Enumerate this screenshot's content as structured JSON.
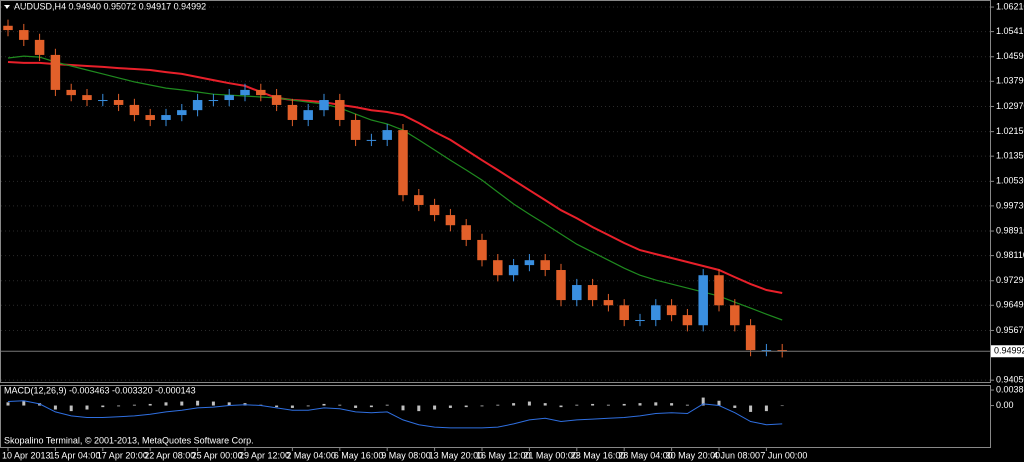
{
  "chart_data": [
    {
      "type": "candlestick",
      "title": "AUDUSD,H4  0.94940 0.95072 0.94917 0.94992",
      "footer": "Skopalino Terminal, © 2001-2013, MetaQuotes Software Corp.",
      "categories": [
        "10 Apr 2013",
        null,
        null,
        "15 Apr 04:00",
        null,
        null,
        "17 Apr 20:00",
        null,
        null,
        "22 Apr 08:00",
        null,
        null,
        "25 Apr 00:00",
        null,
        null,
        "29 Apr 12:00",
        null,
        null,
        "2 May 04:00",
        null,
        null,
        "6 May 16:00",
        null,
        null,
        "9 May 08:00",
        null,
        null,
        "13 May 20:00",
        null,
        null,
        "16 May 12:00",
        null,
        null,
        "21 May 00:00",
        null,
        null,
        "23 May 16:00",
        null,
        null,
        "28 May 04:00",
        null,
        null,
        "30 May 20:00",
        null,
        null,
        "4 Jun 08:00",
        null,
        null,
        "7 Jun 00:00",
        null
      ],
      "open": [
        1.056,
        1.0546,
        1.0514,
        1.0465,
        1.0351,
        1.0334,
        1.0318,
        1.0318,
        1.0302,
        1.0269,
        1.0253,
        1.0269,
        1.0285,
        1.0318,
        1.0318,
        1.0334,
        1.0351,
        1.0334,
        1.0302,
        1.0253,
        1.0285,
        1.0318,
        1.0253,
        1.0188,
        1.0188,
        1.022,
        1.0008,
        0.9976,
        0.9943,
        0.991,
        0.9862,
        0.9796,
        0.9747,
        0.978,
        0.9796,
        0.9764,
        0.9666,
        0.9715,
        0.9666,
        0.9649,
        0.9601,
        0.9601,
        0.9649,
        0.9617,
        0.9584,
        0.9747,
        0.9649,
        0.9584,
        0.9503,
        0.9503
      ],
      "high": [
        1.058,
        1.0566,
        1.0534,
        1.0485,
        1.0371,
        1.0354,
        1.0338,
        1.0338,
        1.0322,
        1.0289,
        1.0289,
        1.0305,
        1.0338,
        1.0338,
        1.0354,
        1.0371,
        1.0371,
        1.0354,
        1.0322,
        1.0305,
        1.0338,
        1.0338,
        1.0273,
        1.0208,
        1.024,
        1.024,
        1.0028,
        0.9996,
        0.9963,
        0.993,
        0.9882,
        0.9816,
        0.98,
        0.9816,
        0.9816,
        0.9784,
        0.9735,
        0.9735,
        0.9686,
        0.9669,
        0.9621,
        0.9669,
        0.9669,
        0.9637,
        0.9767,
        0.9767,
        0.9669,
        0.9604,
        0.9523,
        0.9523
      ],
      "low": [
        1.0526,
        1.0494,
        1.0445,
        1.0331,
        1.0314,
        1.0298,
        1.0298,
        1.0282,
        1.0249,
        1.0233,
        1.0233,
        1.0249,
        1.0265,
        1.0298,
        1.0298,
        1.0314,
        1.0314,
        1.0282,
        1.0233,
        1.0233,
        1.0265,
        1.0233,
        1.0168,
        1.0168,
        1.0168,
        0.9988,
        0.9956,
        0.9923,
        0.989,
        0.9842,
        0.9776,
        0.9727,
        0.9727,
        0.976,
        0.9744,
        0.9646,
        0.9646,
        0.9646,
        0.9629,
        0.9581,
        0.9581,
        0.9581,
        0.9597,
        0.9564,
        0.9564,
        0.9629,
        0.9564,
        0.9483,
        0.9483,
        0.9479
      ],
      "close": [
        1.0546,
        1.0514,
        1.0465,
        1.0351,
        1.0334,
        1.0318,
        1.0318,
        1.0302,
        1.0269,
        1.0253,
        1.0269,
        1.0285,
        1.0318,
        1.0318,
        1.0334,
        1.0351,
        1.0334,
        1.0302,
        1.0253,
        1.0285,
        1.0318,
        1.0253,
        1.0188,
        1.0188,
        1.022,
        1.0008,
        0.9976,
        0.9943,
        0.991,
        0.9862,
        0.9796,
        0.9747,
        0.978,
        0.9796,
        0.9764,
        0.9666,
        0.9715,
        0.9666,
        0.9649,
        0.9601,
        0.9601,
        0.9649,
        0.9617,
        0.9584,
        0.9747,
        0.9649,
        0.9584,
        0.9503,
        0.9503,
        0.9499
      ],
      "up_color": "#3a8fe0",
      "down_color": "#e2602a",
      "series": [
        {
          "color": "#e8202a",
          "values": [
            1.0442,
            1.0439,
            1.0439,
            1.0435,
            1.0432,
            1.0429,
            1.0426,
            1.0422,
            1.0419,
            1.0416,
            1.0409,
            1.0403,
            1.0393,
            1.0383,
            1.0373,
            1.0364,
            1.0344,
            1.0325,
            1.0318,
            1.0315,
            1.0311,
            1.0302,
            1.0295,
            1.0285,
            1.0279,
            1.0269,
            1.0243,
            1.0214,
            1.0188,
            1.0155,
            1.0122,
            1.009,
            1.0057,
            1.0024,
            0.9992,
            0.9959,
            0.9933,
            0.9904,
            0.9878,
            0.9852,
            0.9829,
            0.9816,
            0.9803,
            0.979,
            0.9777,
            0.9764,
            0.9741,
            0.9718,
            0.9699,
            0.9689
          ]
        },
        {
          "color": "#1f8a1f",
          "values": [
            1.0455,
            1.0461,
            1.0458,
            1.0442,
            1.0429,
            1.0416,
            1.0403,
            1.039,
            1.0377,
            1.0367,
            1.0357,
            1.0351,
            1.0344,
            1.0337,
            1.0334,
            1.0331,
            1.0328,
            1.0325,
            1.0318,
            1.0311,
            1.0305,
            1.0292,
            1.0272,
            1.0253,
            1.024,
            1.022,
            1.0188,
            1.0155,
            1.0122,
            1.009,
            1.0057,
            1.0018,
            0.9979,
            0.9946,
            0.9914,
            0.9881,
            0.9848,
            0.9822,
            0.9796,
            0.977,
            0.9747,
            0.9731,
            0.9718,
            0.9705,
            0.9692,
            0.9679,
            0.9659,
            0.964,
            0.962,
            0.9601
          ]
        }
      ],
      "current_price": 0.94992,
      "ylim": [
        0.9399,
        1.0644
      ],
      "yticks": [
        {
          "value": 1.0621,
          "label": "1.06210"
        },
        {
          "value": 1.0541,
          "label": "1.05410"
        },
        {
          "value": 1.0459,
          "label": "1.04590"
        },
        {
          "value": 1.0379,
          "label": "1.03790"
        },
        {
          "value": 1.0297,
          "label": "1.02970"
        },
        {
          "value": 1.0215,
          "label": "1.02150"
        },
        {
          "value": 1.0135,
          "label": "1.01350"
        },
        {
          "value": 1.0053,
          "label": "1.00530"
        },
        {
          "value": 0.9973,
          "label": "0.99730"
        },
        {
          "value": 0.9891,
          "label": "0.98910"
        },
        {
          "value": 0.9811,
          "label": "0.98110"
        },
        {
          "value": 0.9729,
          "label": "0.97290"
        },
        {
          "value": 0.9649,
          "label": "0.96490"
        },
        {
          "value": 0.9567,
          "label": "0.95670"
        },
        {
          "value": 0.9405,
          "label": "0.94050"
        }
      ],
      "grid": true
    },
    {
      "type": "macd",
      "title": "MACD(12,26,9) -0.003463 -0.003320 -0.000143",
      "values": [
        0.0008,
        0.0012,
        0.0006,
        -0.001,
        -0.0014,
        -0.001,
        -0.0004,
        -0.0002,
        0.0002,
        0.0004,
        0.0008,
        0.001,
        0.0012,
        0.001,
        0.0008,
        0.0006,
        0.0002,
        -0.0004,
        -0.0006,
        -0.0002,
        0.0004,
        0.0002,
        -0.0006,
        -0.0004,
        0.0002,
        -0.0012,
        -0.0014,
        -0.001,
        -0.0006,
        -0.0004,
        -0.0002,
        0.0002,
        0.0006,
        0.001,
        0.0006,
        -0.0004,
        0.0002,
        0.0004,
        0.0002,
        0.0004,
        0.0006,
        0.0008,
        0.0006,
        0.0002,
        0.002,
        0.0012,
        -0.0006,
        -0.0016,
        -0.0014,
        -0.0001
      ],
      "color": "#c0c0c0",
      "series": [
        {
          "color": "#2f6fe0",
          "values": [
            0.001,
            0.0012,
            0.0004,
            -0.0016,
            -0.0026,
            -0.003,
            -0.003,
            -0.0028,
            -0.0026,
            -0.0022,
            -0.0016,
            -0.0012,
            -0.0006,
            -0.0004,
            0,
            0.0002,
            0,
            -0.0006,
            -0.0012,
            -0.0012,
            -0.0006,
            -0.0008,
            -0.0016,
            -0.0018,
            -0.0016,
            -0.0036,
            -0.0048,
            -0.0054,
            -0.0056,
            -0.0056,
            -0.0056,
            -0.0054,
            -0.0046,
            -0.0036,
            -0.0032,
            -0.004,
            -0.0036,
            -0.0034,
            -0.0032,
            -0.003,
            -0.0026,
            -0.002,
            -0.0018,
            -0.002,
            0.0004,
            0,
            -0.0018,
            -0.004,
            -0.0048,
            -0.0046
          ]
        }
      ],
      "ylim": [
        -0.0104,
        0.0049
      ],
      "yticks": [
        0.003882,
        {
          "value": 0,
          "label": "0.00"
        }
      ]
    }
  ]
}
